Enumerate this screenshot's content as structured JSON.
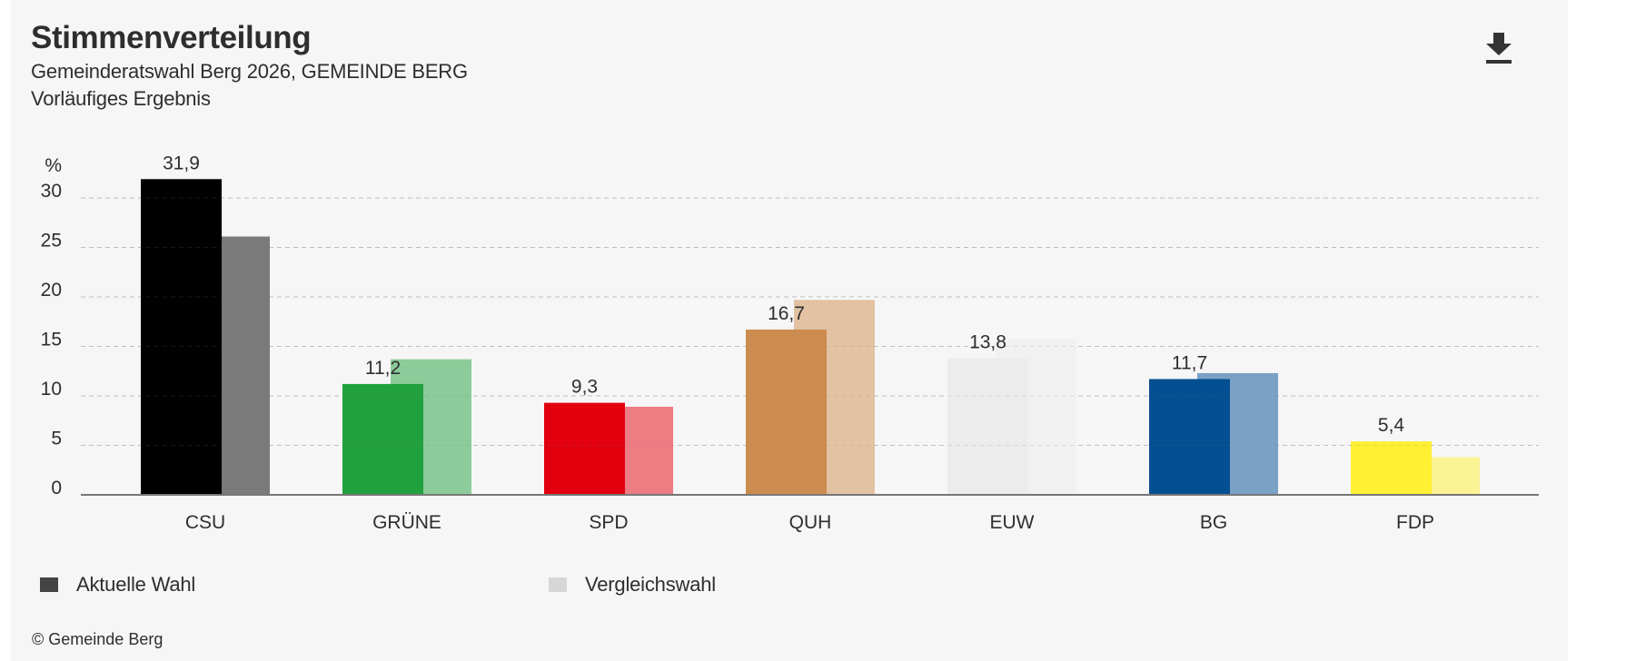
{
  "header": {
    "title": "Stimmenverteilung",
    "subtitle": "Gemeinderatswahl Berg 2026, GEMEINDE BERG",
    "status": "Vorläufiges Ergebnis",
    "download_icon": "download-icon"
  },
  "legend": {
    "current": {
      "label": "Aktuelle Wahl",
      "color": "#444444"
    },
    "comparison": {
      "label": "Vergleichswahl",
      "color": "#d6d6d6"
    }
  },
  "footer": {
    "copyright": "© Gemeinde Berg"
  },
  "colors": {
    "background": "#f6f6f6",
    "text": "#2e2e2e",
    "gridline": "#cfcfcf",
    "axis": "#777777"
  },
  "chart_data": {
    "type": "bar",
    "title": "Stimmenverteilung",
    "xlabel": "",
    "ylabel": "%",
    "ylim": [
      0,
      30
    ],
    "yticks": [
      0,
      5,
      10,
      15,
      20,
      25,
      30
    ],
    "grid": true,
    "legend_position": "bottom-left",
    "categories": [
      "CSU",
      "GRÜNE",
      "SPD",
      "QUH",
      "EUW",
      "BG",
      "FDP"
    ],
    "series": [
      {
        "name": "Aktuelle Wahl",
        "values": [
          31.9,
          11.2,
          9.3,
          16.7,
          13.8,
          11.7,
          5.4
        ],
        "labels": [
          "31,9",
          "11,2",
          "9,3",
          "16,7",
          "13,8",
          "11,7",
          "5,4"
        ],
        "colors": [
          "#000000",
          "#21a03e",
          "#e2000f",
          "#cd8c4f",
          "#ececec",
          "#044f91",
          "#fff033"
        ]
      },
      {
        "name": "Vergleichswahl",
        "values": [
          26.1,
          13.7,
          8.9,
          19.7,
          15.8,
          12.3,
          3.8
        ],
        "colors": [
          "#7a7a7a",
          "#8ccc9a",
          "#ed7c83",
          "#e2c2a3",
          "#f1f1f1",
          "#7ba1c5",
          "#fbf294"
        ]
      }
    ]
  }
}
